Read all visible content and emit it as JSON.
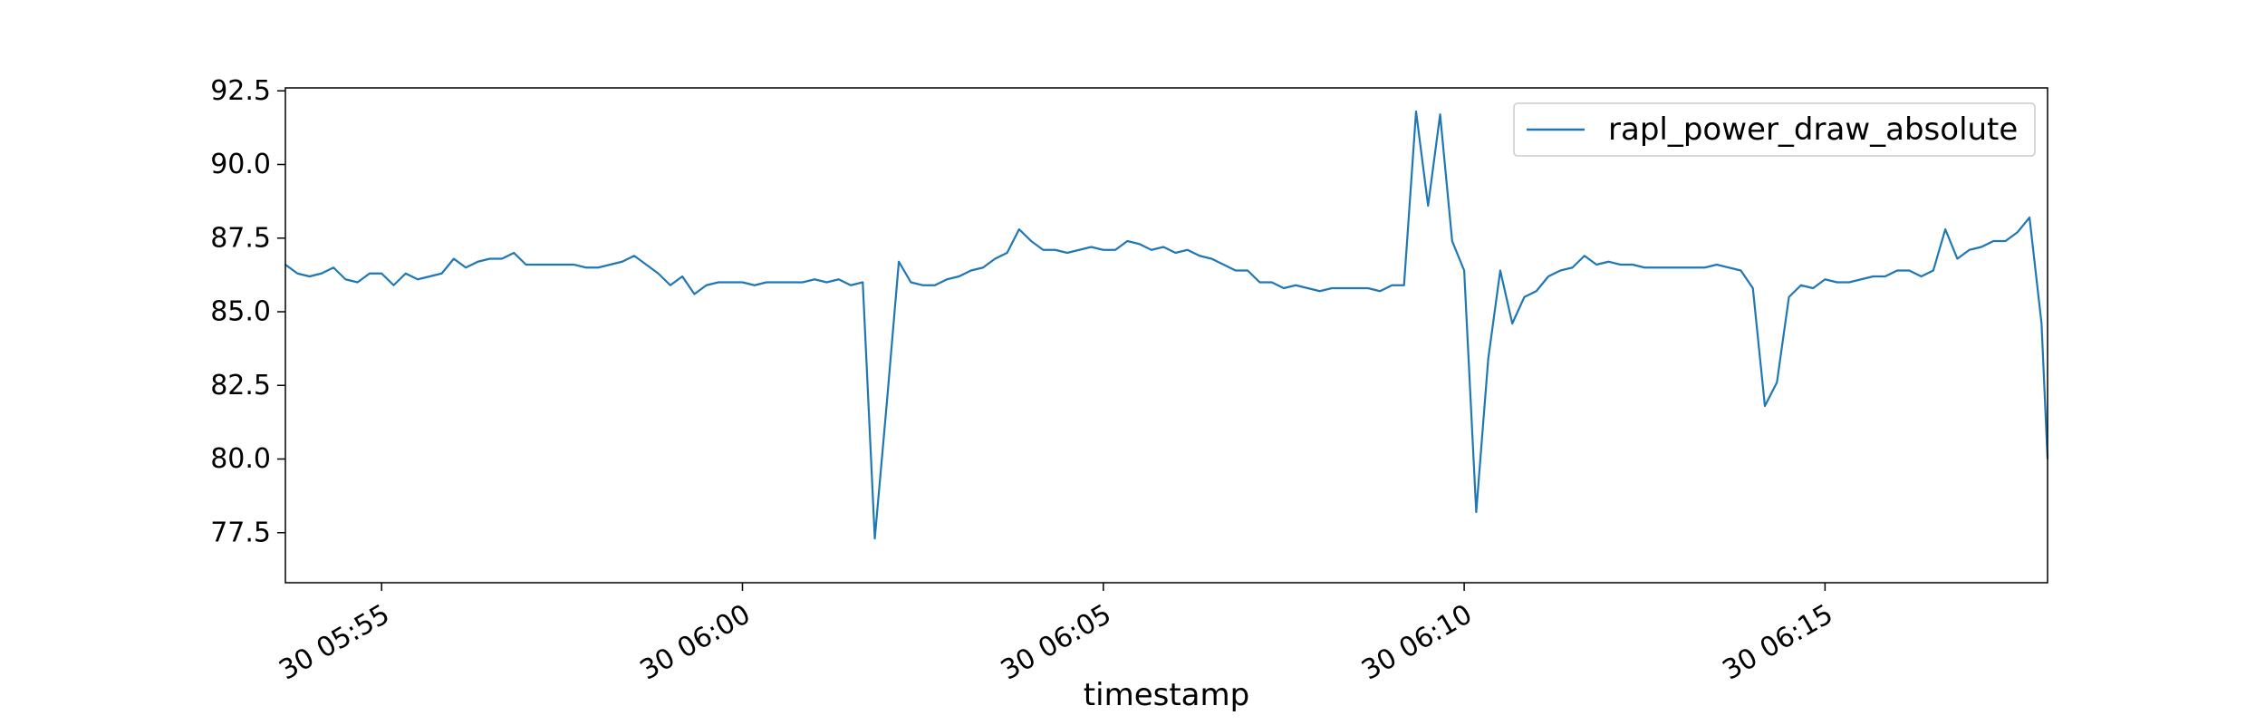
{
  "chart_data": {
    "type": "line",
    "title": "",
    "xlabel": "timestamp",
    "ylabel": "",
    "x_type": "datetime",
    "xlim": [
      "2024-01-30 05:53:40",
      "2024-01-30 06:18:05"
    ],
    "ylim": [
      75.8,
      92.6
    ],
    "yticks": [
      77.5,
      80.0,
      82.5,
      85.0,
      87.5,
      90.0,
      92.5
    ],
    "ytick_labels": [
      "77.5",
      "80.0",
      "82.5",
      "85.0",
      "87.5",
      "90.0",
      "92.5"
    ],
    "xticks": [
      "2024-01-30 05:55:00",
      "2024-01-30 06:00:00",
      "2024-01-30 06:05:00",
      "2024-01-30 06:10:00",
      "2024-01-30 06:15:00"
    ],
    "xtick_labels": [
      "30 05:55",
      "30 06:00",
      "30 06:05",
      "30 06:10",
      "30 06:15"
    ],
    "grid": false,
    "legend": {
      "position": "top-right"
    },
    "colors": {
      "series": "#1f77b4",
      "axes": "#000000",
      "background": "#ffffff"
    },
    "series": [
      {
        "name": "rapl_power_draw_absolute",
        "points": [
          [
            "2024-01-30 05:53:40",
            86.6
          ],
          [
            "2024-01-30 05:53:50",
            86.3
          ],
          [
            "2024-01-30 05:54:00",
            86.2
          ],
          [
            "2024-01-30 05:54:10",
            86.3
          ],
          [
            "2024-01-30 05:54:20",
            86.5
          ],
          [
            "2024-01-30 05:54:30",
            86.1
          ],
          [
            "2024-01-30 05:54:40",
            86.0
          ],
          [
            "2024-01-30 05:54:50",
            86.3
          ],
          [
            "2024-01-30 05:55:00",
            86.3
          ],
          [
            "2024-01-30 05:55:10",
            85.9
          ],
          [
            "2024-01-30 05:55:20",
            86.3
          ],
          [
            "2024-01-30 05:55:30",
            86.1
          ],
          [
            "2024-01-30 05:55:40",
            86.2
          ],
          [
            "2024-01-30 05:55:50",
            86.3
          ],
          [
            "2024-01-30 05:56:00",
            86.8
          ],
          [
            "2024-01-30 05:56:10",
            86.5
          ],
          [
            "2024-01-30 05:56:20",
            86.7
          ],
          [
            "2024-01-30 05:56:30",
            86.8
          ],
          [
            "2024-01-30 05:56:40",
            86.8
          ],
          [
            "2024-01-30 05:56:50",
            87.0
          ],
          [
            "2024-01-30 05:57:00",
            86.6
          ],
          [
            "2024-01-30 05:57:10",
            86.6
          ],
          [
            "2024-01-30 05:57:20",
            86.6
          ],
          [
            "2024-01-30 05:57:30",
            86.6
          ],
          [
            "2024-01-30 05:57:40",
            86.6
          ],
          [
            "2024-01-30 05:57:50",
            86.5
          ],
          [
            "2024-01-30 05:58:00",
            86.5
          ],
          [
            "2024-01-30 05:58:10",
            86.6
          ],
          [
            "2024-01-30 05:58:20",
            86.7
          ],
          [
            "2024-01-30 05:58:30",
            86.9
          ],
          [
            "2024-01-30 05:58:40",
            86.6
          ],
          [
            "2024-01-30 05:58:50",
            86.3
          ],
          [
            "2024-01-30 05:59:00",
            85.9
          ],
          [
            "2024-01-30 05:59:10",
            86.2
          ],
          [
            "2024-01-30 05:59:20",
            85.6
          ],
          [
            "2024-01-30 05:59:30",
            85.9
          ],
          [
            "2024-01-30 05:59:40",
            86.0
          ],
          [
            "2024-01-30 05:59:50",
            86.0
          ],
          [
            "2024-01-30 06:00:00",
            86.0
          ],
          [
            "2024-01-30 06:00:10",
            85.9
          ],
          [
            "2024-01-30 06:00:20",
            86.0
          ],
          [
            "2024-01-30 06:00:30",
            86.0
          ],
          [
            "2024-01-30 06:00:40",
            86.0
          ],
          [
            "2024-01-30 06:00:50",
            86.0
          ],
          [
            "2024-01-30 06:01:00",
            86.1
          ],
          [
            "2024-01-30 06:01:10",
            86.0
          ],
          [
            "2024-01-30 06:01:20",
            86.1
          ],
          [
            "2024-01-30 06:01:30",
            85.9
          ],
          [
            "2024-01-30 06:01:40",
            86.0
          ],
          [
            "2024-01-30 06:01:50",
            77.3
          ],
          [
            "2024-01-30 06:02:00",
            81.9
          ],
          [
            "2024-01-30 06:02:10",
            86.7
          ],
          [
            "2024-01-30 06:02:20",
            86.0
          ],
          [
            "2024-01-30 06:02:30",
            85.9
          ],
          [
            "2024-01-30 06:02:40",
            85.9
          ],
          [
            "2024-01-30 06:02:50",
            86.1
          ],
          [
            "2024-01-30 06:03:00",
            86.2
          ],
          [
            "2024-01-30 06:03:10",
            86.4
          ],
          [
            "2024-01-30 06:03:20",
            86.5
          ],
          [
            "2024-01-30 06:03:30",
            86.8
          ],
          [
            "2024-01-30 06:03:40",
            87.0
          ],
          [
            "2024-01-30 06:03:50",
            87.8
          ],
          [
            "2024-01-30 06:04:00",
            87.4
          ],
          [
            "2024-01-30 06:04:10",
            87.1
          ],
          [
            "2024-01-30 06:04:20",
            87.1
          ],
          [
            "2024-01-30 06:04:30",
            87.0
          ],
          [
            "2024-01-30 06:04:40",
            87.1
          ],
          [
            "2024-01-30 06:04:50",
            87.2
          ],
          [
            "2024-01-30 06:05:00",
            87.1
          ],
          [
            "2024-01-30 06:05:10",
            87.1
          ],
          [
            "2024-01-30 06:05:20",
            87.4
          ],
          [
            "2024-01-30 06:05:30",
            87.3
          ],
          [
            "2024-01-30 06:05:40",
            87.1
          ],
          [
            "2024-01-30 06:05:50",
            87.2
          ],
          [
            "2024-01-30 06:06:00",
            87.0
          ],
          [
            "2024-01-30 06:06:10",
            87.1
          ],
          [
            "2024-01-30 06:06:20",
            86.9
          ],
          [
            "2024-01-30 06:06:30",
            86.8
          ],
          [
            "2024-01-30 06:06:40",
            86.6
          ],
          [
            "2024-01-30 06:06:50",
            86.4
          ],
          [
            "2024-01-30 06:07:00",
            86.4
          ],
          [
            "2024-01-30 06:07:10",
            86.0
          ],
          [
            "2024-01-30 06:07:20",
            86.0
          ],
          [
            "2024-01-30 06:07:30",
            85.8
          ],
          [
            "2024-01-30 06:07:40",
            85.9
          ],
          [
            "2024-01-30 06:07:50",
            85.8
          ],
          [
            "2024-01-30 06:08:00",
            85.7
          ],
          [
            "2024-01-30 06:08:10",
            85.8
          ],
          [
            "2024-01-30 06:08:20",
            85.8
          ],
          [
            "2024-01-30 06:08:30",
            85.8
          ],
          [
            "2024-01-30 06:08:40",
            85.8
          ],
          [
            "2024-01-30 06:08:50",
            85.7
          ],
          [
            "2024-01-30 06:09:00",
            85.9
          ],
          [
            "2024-01-30 06:09:10",
            85.9
          ],
          [
            "2024-01-30 06:09:20",
            91.8
          ],
          [
            "2024-01-30 06:09:30",
            88.6
          ],
          [
            "2024-01-30 06:09:40",
            91.7
          ],
          [
            "2024-01-30 06:09:50",
            87.4
          ],
          [
            "2024-01-30 06:10:00",
            86.4
          ],
          [
            "2024-01-30 06:10:10",
            78.2
          ],
          [
            "2024-01-30 06:10:20",
            83.4
          ],
          [
            "2024-01-30 06:10:30",
            86.4
          ],
          [
            "2024-01-30 06:10:40",
            84.6
          ],
          [
            "2024-01-30 06:10:50",
            85.5
          ],
          [
            "2024-01-30 06:11:00",
            85.7
          ],
          [
            "2024-01-30 06:11:10",
            86.2
          ],
          [
            "2024-01-30 06:11:20",
            86.4
          ],
          [
            "2024-01-30 06:11:30",
            86.5
          ],
          [
            "2024-01-30 06:11:40",
            86.9
          ],
          [
            "2024-01-30 06:11:50",
            86.6
          ],
          [
            "2024-01-30 06:12:00",
            86.7
          ],
          [
            "2024-01-30 06:12:10",
            86.6
          ],
          [
            "2024-01-30 06:12:20",
            86.6
          ],
          [
            "2024-01-30 06:12:30",
            86.5
          ],
          [
            "2024-01-30 06:12:40",
            86.5
          ],
          [
            "2024-01-30 06:12:50",
            86.5
          ],
          [
            "2024-01-30 06:13:00",
            86.5
          ],
          [
            "2024-01-30 06:13:10",
            86.5
          ],
          [
            "2024-01-30 06:13:20",
            86.5
          ],
          [
            "2024-01-30 06:13:30",
            86.6
          ],
          [
            "2024-01-30 06:13:40",
            86.5
          ],
          [
            "2024-01-30 06:13:50",
            86.4
          ],
          [
            "2024-01-30 06:14:00",
            85.8
          ],
          [
            "2024-01-30 06:14:10",
            81.8
          ],
          [
            "2024-01-30 06:14:20",
            82.6
          ],
          [
            "2024-01-30 06:14:30",
            85.5
          ],
          [
            "2024-01-30 06:14:40",
            85.9
          ],
          [
            "2024-01-30 06:14:50",
            85.8
          ],
          [
            "2024-01-30 06:15:00",
            86.1
          ],
          [
            "2024-01-30 06:15:10",
            86.0
          ],
          [
            "2024-01-30 06:15:20",
            86.0
          ],
          [
            "2024-01-30 06:15:30",
            86.1
          ],
          [
            "2024-01-30 06:15:40",
            86.2
          ],
          [
            "2024-01-30 06:15:50",
            86.2
          ],
          [
            "2024-01-30 06:16:00",
            86.4
          ],
          [
            "2024-01-30 06:16:10",
            86.4
          ],
          [
            "2024-01-30 06:16:20",
            86.2
          ],
          [
            "2024-01-30 06:16:30",
            86.4
          ],
          [
            "2024-01-30 06:16:40",
            87.8
          ],
          [
            "2024-01-30 06:16:50",
            86.8
          ],
          [
            "2024-01-30 06:17:00",
            87.1
          ],
          [
            "2024-01-30 06:17:10",
            87.2
          ],
          [
            "2024-01-30 06:17:20",
            87.4
          ],
          [
            "2024-01-30 06:17:30",
            87.4
          ],
          [
            "2024-01-30 06:17:40",
            87.7
          ],
          [
            "2024-01-30 06:17:50",
            88.2
          ],
          [
            "2024-01-30 06:18:00",
            84.6
          ],
          [
            "2024-01-30 06:18:05",
            80.0
          ]
        ]
      }
    ]
  }
}
